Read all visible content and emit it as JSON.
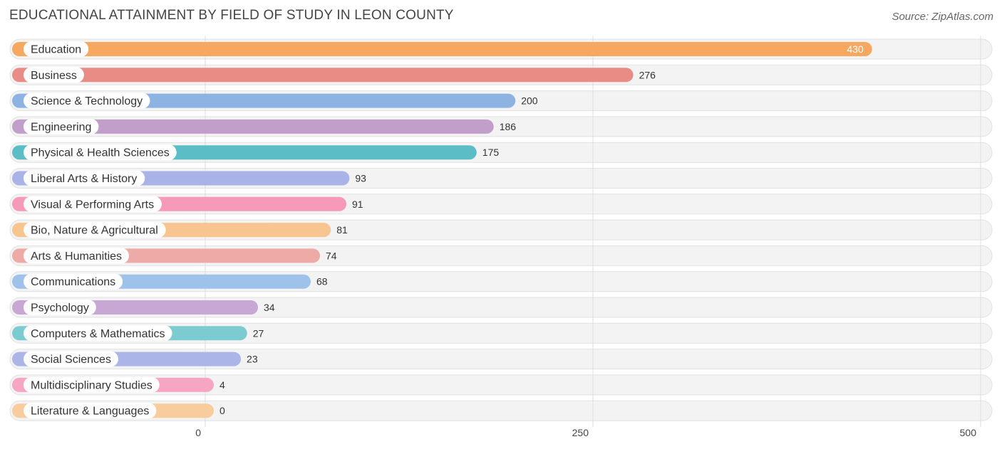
{
  "title": "EDUCATIONAL ATTAINMENT BY FIELD OF STUDY IN LEON COUNTY",
  "source": "Source: ZipAtlas.com",
  "chart_data": {
    "type": "bar",
    "orientation": "horizontal",
    "title": "EDUCATIONAL ATTAINMENT BY FIELD OF STUDY IN LEON COUNTY",
    "xlim": [
      0,
      500
    ],
    "xticks": [
      0,
      250,
      500
    ],
    "xlabel": "",
    "ylabel": "",
    "grid": true,
    "categories": [
      "Education",
      "Business",
      "Science & Technology",
      "Engineering",
      "Physical & Health Sciences",
      "Liberal Arts & History",
      "Visual & Performing Arts",
      "Bio, Nature & Agricultural",
      "Arts & Humanities",
      "Communications",
      "Psychology",
      "Computers & Mathematics",
      "Social Sciences",
      "Multidisciplinary Studies",
      "Literature & Languages"
    ],
    "values": [
      430,
      276,
      200,
      186,
      175,
      93,
      91,
      81,
      74,
      68,
      34,
      27,
      23,
      4,
      0
    ],
    "colors": [
      "#f7a860",
      "#ea8c86",
      "#8db3e2",
      "#c29fcb",
      "#5bbec6",
      "#aab3e8",
      "#f799b8",
      "#f8c490",
      "#eeaaa6",
      "#9ec2ea",
      "#c7a8d4",
      "#7ccbd0",
      "#abb5e8",
      "#f6a6c3",
      "#f8cc9c"
    ]
  }
}
